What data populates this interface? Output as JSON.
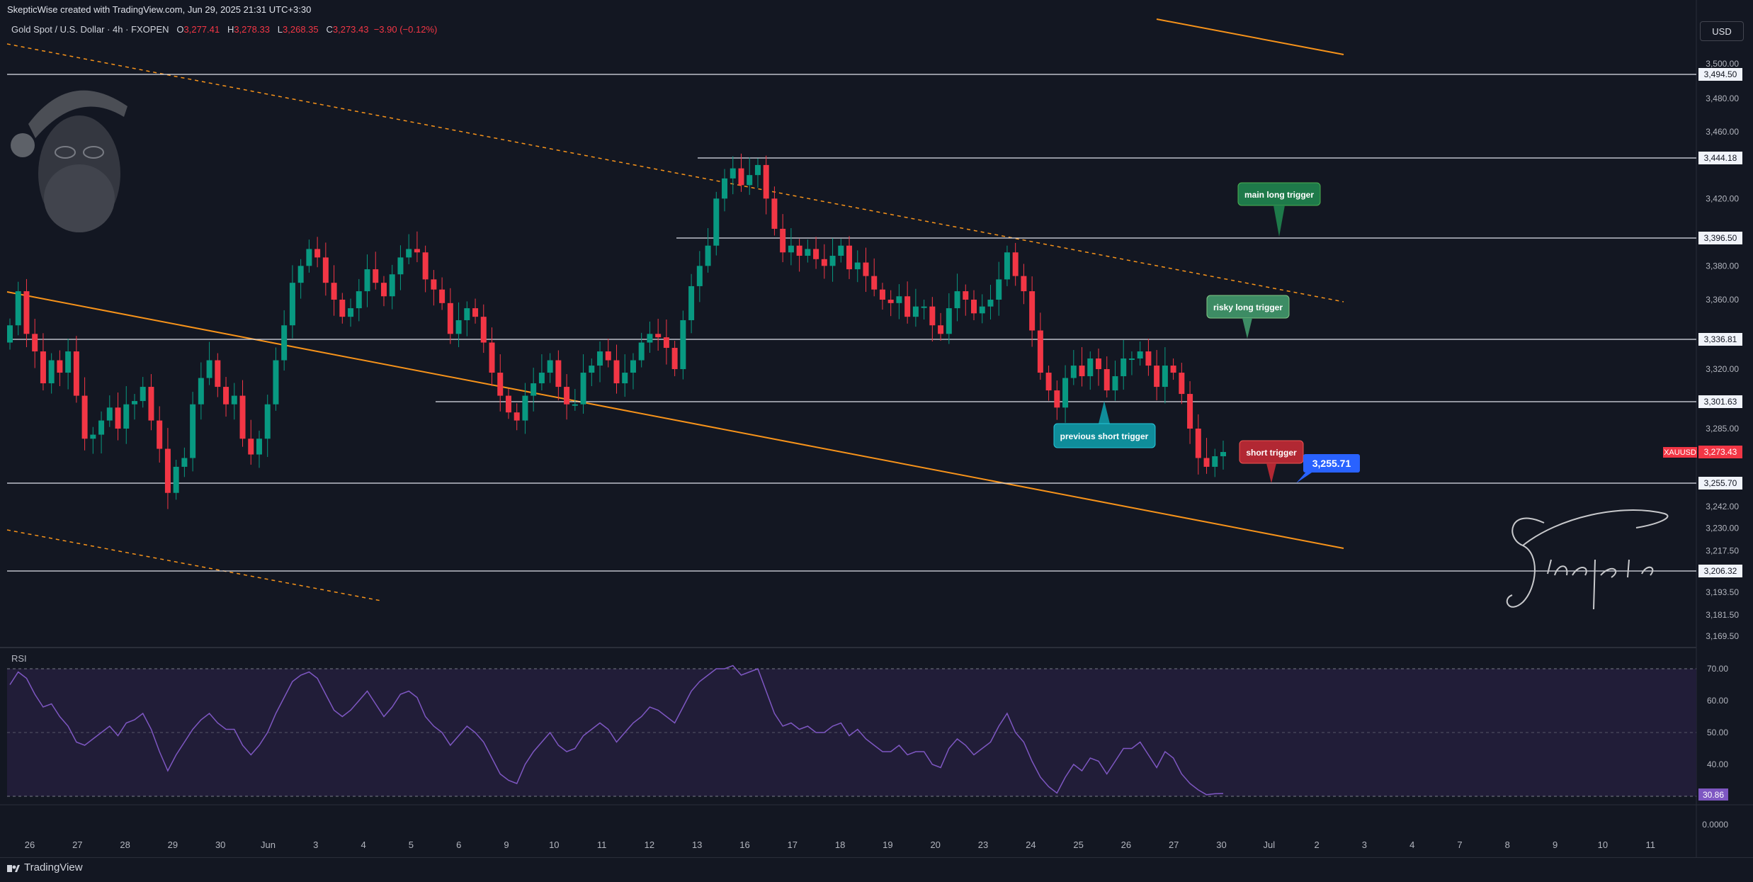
{
  "header": {
    "caption": "SkepticWise created with TradingView.com, Jun 29, 2025 21:31 UTC+3:30",
    "symbol": "Gold Spot / U.S. Dollar · 4h · FXOPEN",
    "o_label": "O",
    "o_value": "3,277.41",
    "h_label": "H",
    "h_value": "3,278.33",
    "l_label": "L",
    "l_value": "3,268.35",
    "c_label": "C",
    "c_value": "3,273.43",
    "change": "−3.90 (−0.12%)",
    "currency": "USD"
  },
  "footer": {
    "brand": "TradingView"
  },
  "rsi": {
    "label": "RSI",
    "value_label": "30.86"
  },
  "colors": {
    "background": "#131722",
    "up": "#089981",
    "down": "#f23645",
    "trendline": "#f7931a",
    "rsi_line": "#7e57c2",
    "rsi_band": "#211d38"
  },
  "chart_data": [
    {
      "type": "candlestick",
      "series": [
        {
          "name": "XAUUSD",
          "last": 3273.43
        }
      ],
      "price_axis_ticks": [
        "3,500.00",
        "3,480.00",
        "3,460.00",
        "3,420.00",
        "3,380.00",
        "3,360.00",
        "3,320.00",
        "3,285.00",
        "3,242.00",
        "3,230.00",
        "3,217.50",
        "3,193.50",
        "3,181.50",
        "3,169.50"
      ],
      "time_axis_labels": [
        "26",
        "27",
        "28",
        "29",
        "30",
        "Jun",
        "3",
        "4",
        "5",
        "6",
        "9",
        "10",
        "11",
        "12",
        "13",
        "16",
        "17",
        "18",
        "19",
        "20",
        "23",
        "24",
        "25",
        "26",
        "27",
        "30",
        "Jul",
        "2",
        "3",
        "4",
        "7",
        "8",
        "9",
        "10",
        "11"
      ],
      "horizontal_levels": [
        {
          "value": 3494.5,
          "label": "3,494.50"
        },
        {
          "value": 3444.18,
          "label": "3,444.18"
        },
        {
          "value": 3396.5,
          "label": "3,396.50"
        },
        {
          "value": 3336.81,
          "label": "3,336.81"
        },
        {
          "value": 3301.63,
          "label": "3,301.63"
        },
        {
          "value": 3255.7,
          "label": "3,255.70"
        },
        {
          "value": 3206.32,
          "label": "3,206.32"
        }
      ],
      "last_price_tag": {
        "symbol": "XAUUSD",
        "label": "3,273.43"
      },
      "annotations": [
        {
          "text": "main long trigger",
          "color": "#1e7a4a"
        },
        {
          "text": "risky long trigger",
          "color": "#3d8c64"
        },
        {
          "text": "previous short trigger",
          "color": "#0f8d9a"
        },
        {
          "text": "short trigger",
          "color": "#b22833"
        },
        {
          "text": "3,255.71",
          "color": "#2962ff"
        }
      ],
      "closes": [
        3345,
        3365,
        3340,
        3330,
        3312,
        3325,
        3318,
        3330,
        3305,
        3280,
        3282,
        3290,
        3298,
        3285,
        3300,
        3302,
        3310,
        3290,
        3275,
        3250,
        3265,
        3270,
        3300,
        3315,
        3325,
        3310,
        3300,
        3305,
        3280,
        3272,
        3280,
        3300,
        3325,
        3345,
        3370,
        3380,
        3390,
        3385,
        3370,
        3360,
        3350,
        3355,
        3365,
        3378,
        3370,
        3362,
        3375,
        3385,
        3390,
        3388,
        3372,
        3366,
        3358,
        3340,
        3348,
        3355,
        3350,
        3335,
        3318,
        3305,
        3295,
        3290,
        3305,
        3312,
        3318,
        3325,
        3310,
        3300,
        3300,
        3318,
        3322,
        3330,
        3325,
        3312,
        3318,
        3325,
        3335,
        3340,
        3338,
        3332,
        3320,
        3348,
        3368,
        3380,
        3392,
        3420,
        3432,
        3438,
        3428,
        3434,
        3440,
        3420,
        3402,
        3388,
        3392,
        3386,
        3390,
        3384,
        3380,
        3386,
        3392,
        3378,
        3382,
        3374,
        3366,
        3360,
        3358,
        3362,
        3350,
        3356,
        3356,
        3345,
        3340,
        3355,
        3365,
        3360,
        3352,
        3356,
        3360,
        3372,
        3388,
        3374,
        3365,
        3342,
        3318,
        3308,
        3298,
        3315,
        3322,
        3316,
        3326,
        3320,
        3308,
        3316,
        3326,
        3326,
        3330,
        3322,
        3310,
        3322,
        3318,
        3306,
        3285,
        3270,
        3265,
        3271,
        3273.43
      ],
      "rsi_values": [
        65,
        69,
        67,
        62,
        58,
        59,
        55,
        52,
        47,
        46,
        48,
        50,
        52,
        49,
        53,
        54,
        56,
        51,
        44,
        38,
        43,
        47,
        51,
        54,
        56,
        53,
        51,
        51,
        46,
        43,
        46,
        50,
        56,
        61,
        66,
        68,
        69,
        67,
        62,
        57,
        55,
        57,
        60,
        63,
        59,
        55,
        58,
        62,
        63,
        61,
        55,
        52,
        50,
        46,
        49,
        52,
        50,
        47,
        42,
        37,
        35,
        34,
        40,
        44,
        47,
        50,
        46,
        44,
        45,
        49,
        51,
        53,
        51,
        47,
        50,
        53,
        55,
        58,
        57,
        55,
        53,
        58,
        63,
        66,
        68,
        70,
        70,
        71,
        68,
        69,
        70,
        63,
        56,
        52,
        53,
        51,
        52,
        50,
        50,
        52,
        53,
        49,
        51,
        48,
        46,
        44,
        44,
        46,
        43,
        44,
        44,
        40,
        39,
        45,
        48,
        46,
        43,
        45,
        47,
        52,
        56,
        50,
        47,
        41,
        36,
        33,
        31,
        36,
        40,
        38,
        42,
        41,
        37,
        41,
        45,
        45,
        47,
        43,
        39,
        44,
        42,
        37,
        34,
        32,
        30.5,
        30.8,
        30.86
      ],
      "rsi_axis_ticks": [
        "70.00",
        "60.00",
        "50.00",
        "40.00",
        "0.0000"
      ]
    }
  ]
}
